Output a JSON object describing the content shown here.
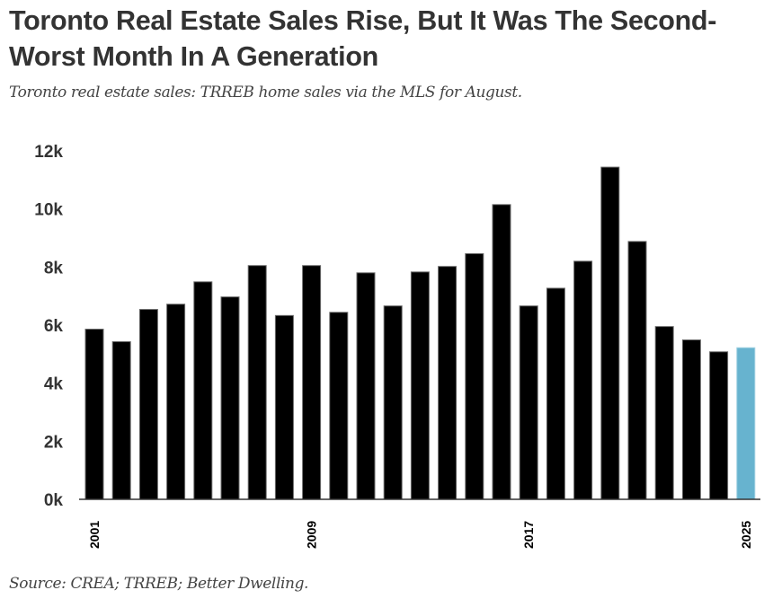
{
  "header": {
    "title": "Toronto Real Estate Sales Rise, But It Was The Second-Worst Month In A Generation",
    "subtitle": "Toronto real estate sales: TRREB home sales via the MLS for August."
  },
  "footer": {
    "source": "Source: CREA; TRREB; Better Dwelling."
  },
  "colors": {
    "bar_default": "#000000",
    "bar_outline": "#6b6b6b",
    "bar_highlight": "#67b3cf",
    "bar_highlight_outline": "#9fd0e2",
    "axis": "#333333"
  },
  "chart_data": {
    "type": "bar",
    "title": "Toronto real estate sales: TRREB home sales via the MLS for August.",
    "xlabel": "",
    "ylabel": "",
    "categories": [
      "2001",
      "2002",
      "2003",
      "2004",
      "2005",
      "2006",
      "2007",
      "2008",
      "2009",
      "2010",
      "2011",
      "2012",
      "2013",
      "2014",
      "2015",
      "2016",
      "2017",
      "2018",
      "2019",
      "2020",
      "2021",
      "2022",
      "2023",
      "2024",
      "2025"
    ],
    "values": [
      5860,
      5430,
      6540,
      6720,
      7490,
      6970,
      8050,
      6330,
      8050,
      6440,
      7800,
      6660,
      7830,
      8020,
      8460,
      10150,
      6660,
      7270,
      8200,
      11440,
      8880,
      5950,
      5490,
      5080,
      5220
    ],
    "highlight_category": "2025",
    "ylim": [
      0,
      12000
    ],
    "yticks": [
      0,
      2000,
      4000,
      6000,
      8000,
      10000,
      12000
    ],
    "ytick_labels": [
      "0k",
      "2k",
      "4k",
      "6k",
      "8k",
      "10k",
      "12k"
    ],
    "xtick_labels_shown": [
      "2001",
      "2009",
      "2017",
      "2025"
    ],
    "xtick_rotation": "vertical",
    "grid": false,
    "legend": "none"
  }
}
